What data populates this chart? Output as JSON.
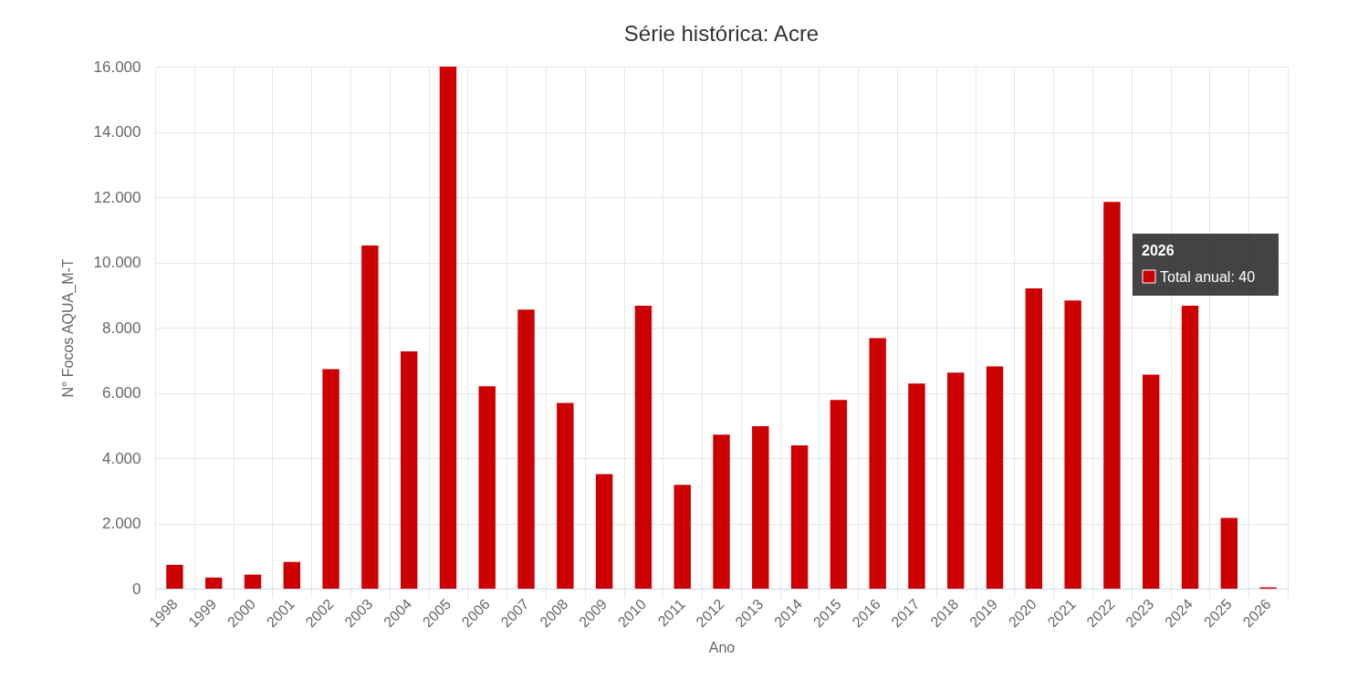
{
  "chart_data": {
    "type": "bar",
    "title": "Série histórica: Acre",
    "xlabel": "Ano",
    "ylabel": "N° Focos AQUA_M-T",
    "categories": [
      "1998",
      "1999",
      "2000",
      "2001",
      "2002",
      "2003",
      "2004",
      "2005",
      "2006",
      "2007",
      "2008",
      "2009",
      "2010",
      "2011",
      "2012",
      "2013",
      "2014",
      "2015",
      "2016",
      "2017",
      "2018",
      "2019",
      "2020",
      "2021",
      "2022",
      "2023",
      "2024",
      "2025",
      "2026"
    ],
    "values": [
      730,
      340,
      430,
      820,
      6730,
      10520,
      7270,
      16000,
      6200,
      8550,
      5690,
      3510,
      8670,
      3180,
      4720,
      4980,
      4390,
      5780,
      7680,
      6290,
      6620,
      6810,
      9200,
      8830,
      11850,
      6560,
      8670,
      2170,
      40
    ],
    "color": "#cc0000",
    "ylim": [
      0,
      16000
    ],
    "yticks": [
      0,
      {
        "value": 2000,
        "label": "2.000"
      },
      {
        "value": 4000,
        "label": "4.000"
      },
      {
        "value": 6000,
        "label": "6.000"
      },
      {
        "value": 8000,
        "label": "8.000"
      },
      {
        "value": 10000,
        "label": "10.000"
      },
      {
        "value": 12000,
        "label": "12.000"
      },
      {
        "value": 14000,
        "label": "14.000"
      },
      {
        "value": 16000,
        "label": "16.000"
      }
    ],
    "grid": true,
    "annotations": [
      "2026",
      "Total anual: 40"
    ]
  }
}
